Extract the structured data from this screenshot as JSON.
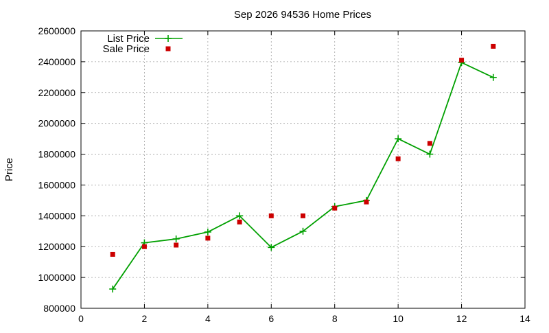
{
  "chart_data": {
    "type": "line",
    "title": "Sep 2026 94536 Home Prices",
    "xlabel": "",
    "ylabel": "Price",
    "xlim": [
      0,
      14
    ],
    "ylim": [
      800000,
      2600000
    ],
    "xticks": [
      0,
      2,
      4,
      6,
      8,
      10,
      12,
      14
    ],
    "yticks": [
      800000,
      1000000,
      1200000,
      1400000,
      1600000,
      1800000,
      2000000,
      2200000,
      2400000,
      2600000
    ],
    "grid": true,
    "legend_position": "top-left",
    "series": [
      {
        "name": "List Price",
        "style": "line-points",
        "marker": "plus",
        "color": "#00a000",
        "x": [
          1,
          2,
          3,
          4,
          5,
          6,
          7,
          8,
          9,
          10,
          11,
          12,
          13
        ],
        "y": [
          925000,
          1225000,
          1250000,
          1295000,
          1400000,
          1195000,
          1300000,
          1460000,
          1500000,
          1900000,
          1800000,
          2395000,
          2298000
        ]
      },
      {
        "name": "Sale Price",
        "style": "points",
        "marker": "square",
        "color": "#cc0000",
        "x": [
          1,
          2,
          3,
          4,
          5,
          6,
          7,
          8,
          9,
          10,
          11,
          12,
          13
        ],
        "y": [
          1150000,
          1200000,
          1210000,
          1255000,
          1360000,
          1400000,
          1400000,
          1450000,
          1490000,
          1770000,
          1870000,
          2410000,
          2500000
        ]
      }
    ]
  }
}
